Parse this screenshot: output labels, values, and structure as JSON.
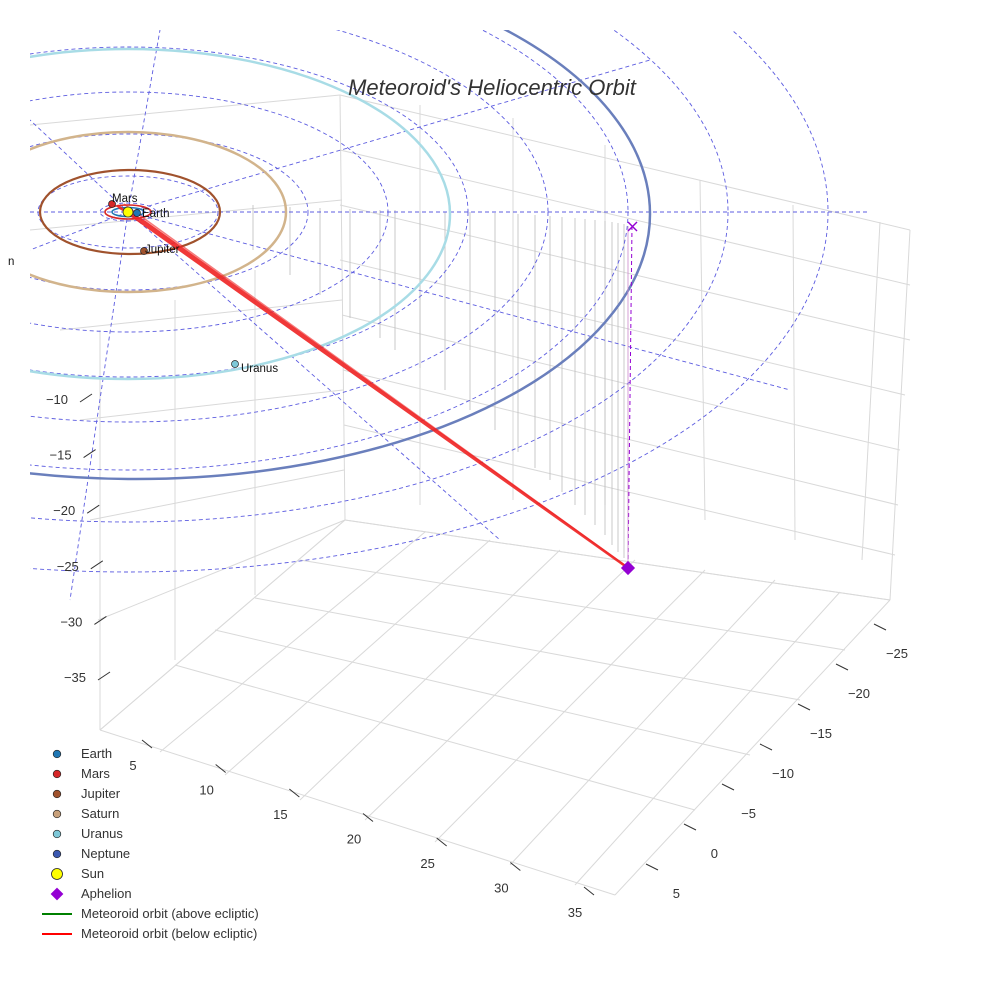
{
  "chart_data": {
    "type": "scatter3d",
    "title": "Meteoroid's Heliocentric Orbit",
    "axes": {
      "x": {
        "ticks": [
          5,
          10,
          15,
          20,
          25,
          30,
          35
        ]
      },
      "y": {
        "ticks": [
          -25,
          -20,
          -15,
          -10,
          -5,
          0,
          5
        ]
      },
      "z": {
        "ticks": [
          -10,
          -15,
          -20,
          -25,
          -30,
          -35
        ]
      }
    },
    "planets": [
      {
        "name": "Earth",
        "color": "#1f77b4",
        "orbit_color": "#1f77b4"
      },
      {
        "name": "Mars",
        "color": "#d62728",
        "orbit_color": "#d62728"
      },
      {
        "name": "Jupiter",
        "color": "#a0522d",
        "orbit_color": "#a0522d"
      },
      {
        "name": "Saturn",
        "color": "#c8a07a",
        "orbit_color": "#d2b48c"
      },
      {
        "name": "Uranus",
        "color": "#7ec8d8",
        "orbit_color": "#a8dce6"
      },
      {
        "name": "Neptune",
        "color": "#3b58b0",
        "orbit_color": "#6a7fbc"
      }
    ],
    "sun": {
      "name": "Sun",
      "color": "#ffff00"
    },
    "aphelion": {
      "name": "Aphelion",
      "color": "#9400d3"
    },
    "series": [
      {
        "name": "Meteoroid orbit (above ecliptic)",
        "color": "#008000"
      },
      {
        "name": "Meteoroid orbit (below ecliptic)",
        "color": "#ff0000"
      }
    ],
    "legend": {
      "position": "bottom-left",
      "items": [
        "Earth",
        "Mars",
        "Jupiter",
        "Saturn",
        "Uranus",
        "Neptune",
        "Sun",
        "Aphelion",
        "Meteoroid orbit (above ecliptic)",
        "Meteoroid orbit (below ecliptic)"
      ]
    },
    "grid": true
  }
}
